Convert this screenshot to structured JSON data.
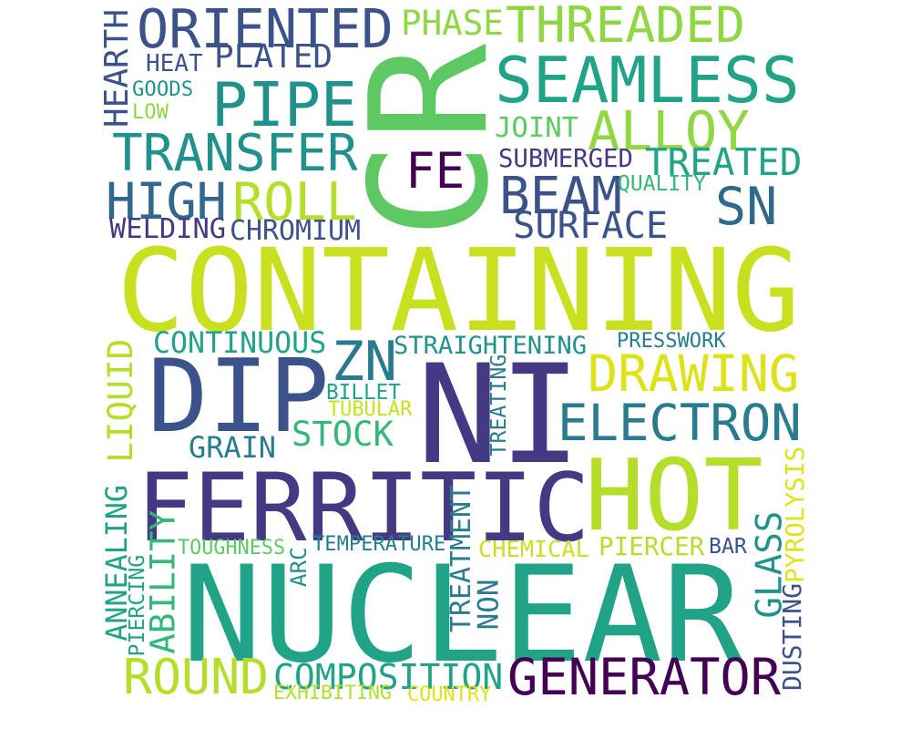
{
  "colors": {
    "background": "#ffffff",
    "palette": [
      "#440154",
      "#443983",
      "#3b528b",
      "#31688e",
      "#287c8e",
      "#21918c",
      "#20a386",
      "#35b779",
      "#5ec962",
      "#90d743",
      "#b5de2b",
      "#c8e020",
      "#dde318",
      "#fde725"
    ]
  },
  "words": [
    "CR",
    "CONTAINING",
    "NUCLEAR",
    "NI",
    "FERRITIC",
    "DIP",
    "HOT",
    "GENERATOR",
    "PIPE",
    "SEAMLESS",
    "TRANSFER",
    "ORIENTED",
    "THREADED",
    "ALLOY",
    "BEAM",
    "DRAWING",
    "ELECTRON",
    "ROUND",
    "COMPOSITION",
    "HIGH",
    "ROLL",
    "SN",
    "FE",
    "SURFACE",
    "ZN",
    "STOCK",
    "LIQUID",
    "ANNEALING",
    "ABILITY",
    "GLASS",
    "TREATMENT",
    "NON",
    "TREATED",
    "PHASE",
    "PLATED",
    "HEARTH",
    "WELDING",
    "CHROMIUM",
    "JOINT",
    "SUBMERGED",
    "CONTINUOUS",
    "STRAIGHTENING",
    "GRAIN",
    "PYROLYSIS",
    "DUSTING",
    "PIERCER",
    "CHEMICAL",
    "TREATING",
    "ARC",
    "PIERCING",
    "TUBULAR",
    "BILLET",
    "TOUGHNESS",
    "TEMPERATURE",
    "EXHIBITING",
    "COUNTRY",
    "PRESSWORK",
    "QUALITY",
    "HEAT",
    "GOODS",
    "LOW",
    "BAR"
  ]
}
